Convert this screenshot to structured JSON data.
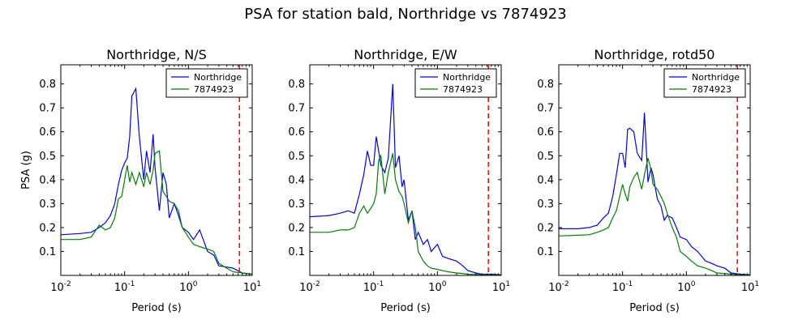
{
  "suptitle": "PSA for station bald, Northridge vs 7874923",
  "colors": {
    "series1": "#0000ff",
    "series2": "#008000",
    "marker": "#ff0000"
  },
  "chart_data": [
    {
      "type": "line",
      "title": "Northridge, N/S",
      "xlabel": "Period (s)",
      "ylabel": "PSA (g)",
      "xscale": "log",
      "xlim": [
        0.01,
        10
      ],
      "ylim": [
        0,
        0.88
      ],
      "xticks": [
        0.01,
        0.1,
        1,
        10
      ],
      "yticks": [
        0.1,
        0.2,
        0.3,
        0.4,
        0.5,
        0.6,
        0.7,
        0.8
      ],
      "legend": "top-right",
      "vline": 6.3,
      "series": [
        {
          "name": "Northridge",
          "x": [
            0.01,
            0.02,
            0.03,
            0.04,
            0.05,
            0.06,
            0.07,
            0.08,
            0.09,
            0.1,
            0.11,
            0.12,
            0.13,
            0.15,
            0.17,
            0.2,
            0.22,
            0.25,
            0.28,
            0.3,
            0.35,
            0.4,
            0.45,
            0.5,
            0.6,
            0.7,
            0.8,
            1.0,
            1.2,
            1.5,
            2.0,
            2.5,
            3.0,
            4.0,
            5.0,
            7.0,
            10.0
          ],
          "values": [
            0.17,
            0.175,
            0.18,
            0.2,
            0.22,
            0.25,
            0.3,
            0.38,
            0.44,
            0.47,
            0.49,
            0.58,
            0.75,
            0.78,
            0.58,
            0.4,
            0.52,
            0.43,
            0.59,
            0.45,
            0.27,
            0.43,
            0.38,
            0.24,
            0.3,
            0.25,
            0.2,
            0.18,
            0.15,
            0.19,
            0.1,
            0.085,
            0.04,
            0.035,
            0.03,
            0.01,
            0.005
          ]
        },
        {
          "name": "7874923",
          "x": [
            0.01,
            0.02,
            0.03,
            0.04,
            0.05,
            0.06,
            0.07,
            0.08,
            0.09,
            0.1,
            0.11,
            0.12,
            0.13,
            0.15,
            0.17,
            0.2,
            0.22,
            0.25,
            0.28,
            0.3,
            0.35,
            0.4,
            0.45,
            0.5,
            0.6,
            0.7,
            0.8,
            1.0,
            1.2,
            1.5,
            2.0,
            2.5,
            3.0,
            4.0,
            5.0,
            7.0,
            10.0
          ],
          "values": [
            0.15,
            0.15,
            0.16,
            0.21,
            0.19,
            0.2,
            0.24,
            0.32,
            0.33,
            0.4,
            0.46,
            0.39,
            0.43,
            0.38,
            0.43,
            0.37,
            0.43,
            0.38,
            0.44,
            0.51,
            0.52,
            0.35,
            0.33,
            0.31,
            0.3,
            0.27,
            0.2,
            0.16,
            0.13,
            0.12,
            0.11,
            0.1,
            0.05,
            0.03,
            0.015,
            0.01,
            0.005
          ]
        }
      ]
    },
    {
      "type": "line",
      "title": "Northridge, E/W",
      "xlabel": "Period (s)",
      "ylabel": "",
      "xscale": "log",
      "xlim": [
        0.01,
        10
      ],
      "ylim": [
        0,
        0.88
      ],
      "xticks": [
        0.01,
        0.1,
        1,
        10
      ],
      "yticks": [
        0.1,
        0.2,
        0.3,
        0.4,
        0.5,
        0.6,
        0.7,
        0.8
      ],
      "legend": "top-right",
      "vline": 6.3,
      "series": [
        {
          "name": "Northridge",
          "x": [
            0.01,
            0.02,
            0.03,
            0.04,
            0.05,
            0.06,
            0.07,
            0.08,
            0.09,
            0.1,
            0.11,
            0.12,
            0.13,
            0.15,
            0.17,
            0.2,
            0.22,
            0.25,
            0.28,
            0.3,
            0.35,
            0.4,
            0.45,
            0.5,
            0.6,
            0.7,
            0.8,
            1.0,
            1.2,
            1.5,
            2.0,
            2.5,
            3.0,
            4.0,
            5.0,
            7.0,
            10.0
          ],
          "values": [
            0.245,
            0.25,
            0.26,
            0.27,
            0.26,
            0.34,
            0.42,
            0.52,
            0.46,
            0.46,
            0.58,
            0.52,
            0.46,
            0.43,
            0.49,
            0.8,
            0.45,
            0.5,
            0.37,
            0.4,
            0.23,
            0.27,
            0.15,
            0.18,
            0.13,
            0.15,
            0.1,
            0.13,
            0.08,
            0.07,
            0.06,
            0.04,
            0.02,
            0.01,
            0.005,
            0.005,
            0.003
          ]
        },
        {
          "name": "7874923",
          "x": [
            0.01,
            0.02,
            0.03,
            0.04,
            0.05,
            0.06,
            0.07,
            0.08,
            0.09,
            0.1,
            0.11,
            0.12,
            0.13,
            0.15,
            0.17,
            0.2,
            0.22,
            0.25,
            0.28,
            0.3,
            0.35,
            0.4,
            0.45,
            0.5,
            0.6,
            0.7,
            0.8,
            1.0,
            1.2,
            1.5,
            2.0,
            2.5,
            3.0,
            4.0,
            5.0,
            7.0,
            10.0
          ],
          "values": [
            0.18,
            0.18,
            0.19,
            0.19,
            0.2,
            0.26,
            0.29,
            0.26,
            0.28,
            0.3,
            0.34,
            0.48,
            0.5,
            0.34,
            0.43,
            0.51,
            0.4,
            0.35,
            0.33,
            0.3,
            0.22,
            0.27,
            0.2,
            0.1,
            0.06,
            0.04,
            0.03,
            0.025,
            0.02,
            0.015,
            0.01,
            0.008,
            0.005,
            0.004,
            0.003,
            0.002,
            0.002
          ]
        }
      ]
    },
    {
      "type": "line",
      "title": "Northridge, rotd50",
      "xlabel": "Period (s)",
      "ylabel": "",
      "xscale": "log",
      "xlim": [
        0.01,
        10
      ],
      "ylim": [
        0,
        0.88
      ],
      "xticks": [
        0.01,
        0.1,
        1,
        10
      ],
      "yticks": [
        0.1,
        0.2,
        0.3,
        0.4,
        0.5,
        0.6,
        0.7,
        0.8
      ],
      "legend": "top-right",
      "vline": 6.3,
      "series": [
        {
          "name": "Northridge",
          "x": [
            0.01,
            0.02,
            0.03,
            0.04,
            0.05,
            0.06,
            0.07,
            0.08,
            0.09,
            0.1,
            0.11,
            0.12,
            0.13,
            0.15,
            0.17,
            0.2,
            0.22,
            0.25,
            0.28,
            0.3,
            0.35,
            0.4,
            0.45,
            0.5,
            0.6,
            0.7,
            0.8,
            1.0,
            1.2,
            1.5,
            2.0,
            2.5,
            3.0,
            4.0,
            5.0,
            7.0,
            10.0
          ],
          "values": [
            0.195,
            0.195,
            0.2,
            0.21,
            0.24,
            0.26,
            0.33,
            0.42,
            0.51,
            0.51,
            0.45,
            0.61,
            0.615,
            0.6,
            0.51,
            0.48,
            0.68,
            0.39,
            0.45,
            0.42,
            0.32,
            0.29,
            0.23,
            0.25,
            0.24,
            0.2,
            0.16,
            0.15,
            0.12,
            0.1,
            0.06,
            0.05,
            0.04,
            0.03,
            0.01,
            0.005,
            0.003
          ]
        },
        {
          "name": "7874923",
          "x": [
            0.01,
            0.02,
            0.03,
            0.04,
            0.05,
            0.06,
            0.07,
            0.08,
            0.09,
            0.1,
            0.11,
            0.12,
            0.13,
            0.15,
            0.17,
            0.2,
            0.22,
            0.25,
            0.28,
            0.3,
            0.35,
            0.4,
            0.45,
            0.5,
            0.6,
            0.7,
            0.8,
            1.0,
            1.2,
            1.5,
            2.0,
            2.5,
            3.0,
            4.0,
            5.0,
            7.0,
            10.0
          ],
          "values": [
            0.165,
            0.168,
            0.17,
            0.18,
            0.19,
            0.2,
            0.24,
            0.27,
            0.33,
            0.38,
            0.34,
            0.31,
            0.37,
            0.41,
            0.43,
            0.36,
            0.42,
            0.49,
            0.44,
            0.38,
            0.36,
            0.33,
            0.3,
            0.26,
            0.2,
            0.16,
            0.1,
            0.08,
            0.06,
            0.04,
            0.03,
            0.02,
            0.01,
            0.008,
            0.005,
            0.003,
            0.002
          ]
        }
      ]
    }
  ]
}
